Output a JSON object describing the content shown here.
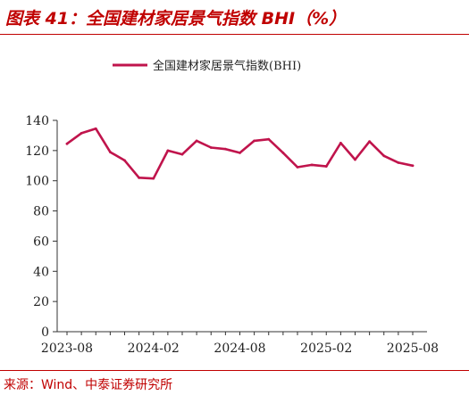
{
  "title": "图表 41：全国建材家居景气指数 BHI（%）",
  "source": "来源：Wind、中泰证券研究所",
  "colors": {
    "accent": "#c00000",
    "series": "#c0144c",
    "axis": "#333333"
  },
  "chart_data": {
    "type": "line",
    "title": "",
    "xlabel": "",
    "ylabel": "",
    "ylim": [
      0,
      140
    ],
    "yticks": [
      0,
      20,
      40,
      60,
      80,
      100,
      120,
      140
    ],
    "xtick_labels": [
      "2023-08",
      "2024-02",
      "2024-08",
      "2025-02",
      "2025-08"
    ],
    "xtick_indices": [
      0,
      6,
      12,
      18,
      24
    ],
    "grid": false,
    "legend": "top-center",
    "x": [
      "2023-08",
      "2023-09",
      "2023-10",
      "2023-11",
      "2023-12",
      "2024-01",
      "2024-02",
      "2024-03",
      "2024-04",
      "2024-05",
      "2024-06",
      "2024-07",
      "2024-08",
      "2024-09",
      "2024-10",
      "2024-11",
      "2024-12",
      "2025-01",
      "2025-02",
      "2025-03",
      "2025-04",
      "2025-05",
      "2025-06",
      "2025-07",
      "2025-08"
    ],
    "series": [
      {
        "name": "全国建材家居景气指数(BHI)",
        "values": [
          124.5,
          131.5,
          134.5,
          119.0,
          113.5,
          102.0,
          101.5,
          120.0,
          117.5,
          126.5,
          122.0,
          121.0,
          118.5,
          126.5,
          127.5,
          118.5,
          109.0,
          110.5,
          109.5,
          125.0,
          114.0,
          126.0,
          116.5,
          112.0,
          110.0
        ]
      }
    ]
  }
}
